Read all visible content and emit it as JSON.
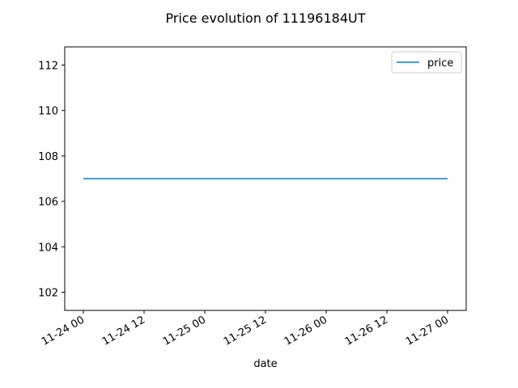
{
  "chart_data": {
    "type": "line",
    "title": "Price evolution of 11196184UT",
    "xlabel": "date",
    "ylabel": "",
    "x_ticks": [
      "11-24 00",
      "11-24 12",
      "11-25 00",
      "11-25 12",
      "11-26 00",
      "11-26 12",
      "11-27 00"
    ],
    "x_range": [
      "11-24 00",
      "11-27 00"
    ],
    "y_ticks": [
      102,
      104,
      106,
      108,
      110,
      112
    ],
    "ylim": [
      101.2,
      112.8
    ],
    "grid": false,
    "legend_position": "upper right",
    "series": [
      {
        "name": "price",
        "color": "#1f77b4",
        "points": [
          {
            "x": "11-24 00",
            "y": 107
          },
          {
            "x": "11-27 00",
            "y": 107
          }
        ]
      }
    ]
  }
}
